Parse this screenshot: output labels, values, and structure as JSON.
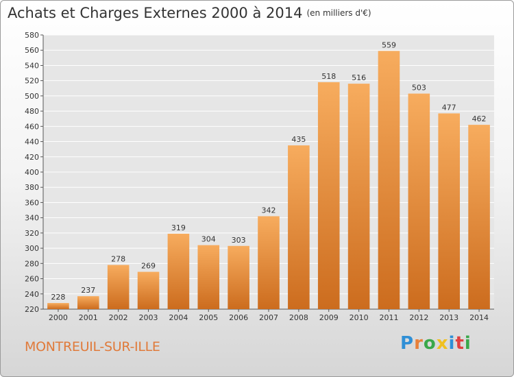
{
  "title": "Achats et Charges Externes 2000 à 2014",
  "subtitle": "(en milliers d'€)",
  "commune": "MONTREUIL-SUR-ILLE",
  "logo": {
    "letters": [
      "P",
      "r",
      "o",
      "x",
      "i",
      "t",
      "i"
    ],
    "colors": [
      "#2f8fd6",
      "#e8803a",
      "#3aa84a",
      "#f0c020",
      "#2f8fd6",
      "#e04040",
      "#3aa84a"
    ]
  },
  "colors": {
    "bar": "#e8883a",
    "bar_light": "#f7ac5e",
    "bar_dark": "#cc6c1e",
    "grid": "#ffffff",
    "text": "#333333"
  },
  "chart_data": {
    "type": "bar",
    "title": "Achats et Charges Externes 2000 à 2014",
    "categories": [
      "2000",
      "2001",
      "2002",
      "2003",
      "2004",
      "2005",
      "2006",
      "2007",
      "2008",
      "2009",
      "2010",
      "2011",
      "2012",
      "2013",
      "2014"
    ],
    "values": [
      228,
      237,
      278,
      269,
      319,
      304,
      303,
      342,
      435,
      518,
      516,
      559,
      503,
      477,
      462
    ],
    "ylim": [
      220,
      580
    ],
    "yticks": [
      220,
      240,
      260,
      280,
      300,
      320,
      340,
      360,
      380,
      400,
      420,
      440,
      460,
      480,
      500,
      520,
      540,
      560,
      580
    ],
    "grid": true,
    "legend": "none"
  }
}
